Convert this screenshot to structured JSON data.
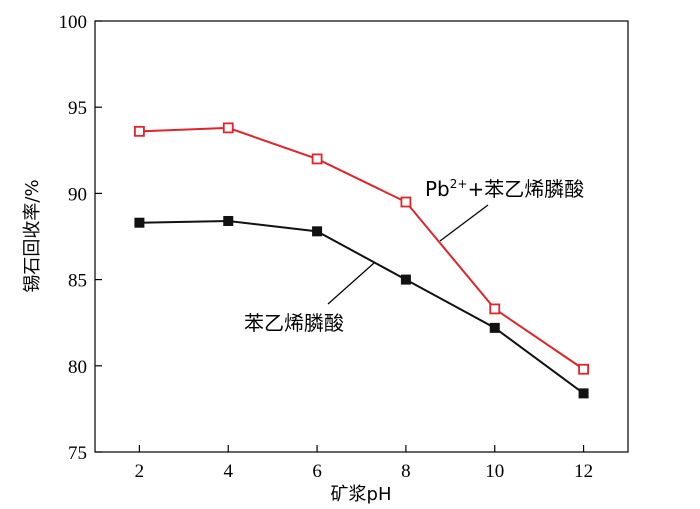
{
  "chart_data": {
    "type": "line",
    "xlabel": "矿浆pH",
    "ylabel": "锡石回收率/%",
    "xlim": [
      1,
      13
    ],
    "ylim": [
      75,
      100
    ],
    "x_ticks": [
      "2",
      "4",
      "6",
      "8",
      "10",
      "12"
    ],
    "y_ticks": [
      "75",
      "80",
      "85",
      "90",
      "95",
      "100"
    ],
    "grid": false,
    "series": [
      {
        "name": "Pb2++苯乙烯膦酸",
        "label_parts": {
          "base": "Pb",
          "sup": "2+",
          "rest": "+苯乙烯膦酸"
        },
        "color": "#e0242b",
        "marker": "open-square",
        "x": [
          2,
          4,
          6,
          8,
          10,
          12
        ],
        "values": [
          93.6,
          93.8,
          92.0,
          89.5,
          83.3,
          79.8
        ]
      },
      {
        "name": "苯乙烯膦酸",
        "color": "#111111",
        "marker": "filled-square",
        "x": [
          2,
          4,
          6,
          8,
          10,
          12
        ],
        "values": [
          88.3,
          88.4,
          87.8,
          85.0,
          82.2,
          78.4
        ]
      }
    ]
  }
}
